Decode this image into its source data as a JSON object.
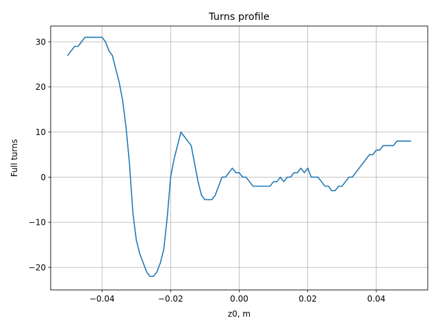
{
  "chart_data": {
    "type": "line",
    "title": "Turns profile",
    "xlabel": "z0, m",
    "ylabel": "Full turns",
    "xlim": [
      -0.055,
      0.055
    ],
    "ylim": [
      -25,
      33.5
    ],
    "grid": true,
    "x_ticks": [
      -0.04,
      -0.02,
      0.0,
      0.02,
      0.04
    ],
    "x_tick_labels": [
      "−0.04",
      "−0.02",
      "0.00",
      "0.02",
      "0.04"
    ],
    "y_ticks": [
      -20,
      -10,
      0,
      10,
      20,
      30
    ],
    "y_tick_labels": [
      "−20",
      "−10",
      "0",
      "10",
      "20",
      "30"
    ],
    "line_color": "#1f77b4",
    "series": [
      {
        "x": [
          -0.05,
          -0.049,
          -0.048,
          -0.047,
          -0.046,
          -0.045,
          -0.044,
          -0.043,
          -0.042,
          -0.041,
          -0.04,
          -0.039,
          -0.038,
          -0.037,
          -0.036,
          -0.035,
          -0.034,
          -0.033,
          -0.032,
          -0.031,
          -0.03,
          -0.029,
          -0.028,
          -0.027,
          -0.026,
          -0.025,
          -0.024,
          -0.023,
          -0.022,
          -0.021,
          -0.02,
          -0.019,
          -0.018,
          -0.017,
          -0.016,
          -0.015,
          -0.014,
          -0.013,
          -0.012,
          -0.011,
          -0.01,
          -0.009,
          -0.008,
          -0.007,
          -0.006,
          -0.005,
          -0.004,
          -0.003,
          -0.002,
          -0.001,
          0.0,
          0.001,
          0.002,
          0.003,
          0.004,
          0.005,
          0.006,
          0.007,
          0.008,
          0.009,
          0.01,
          0.011,
          0.012,
          0.013,
          0.014,
          0.015,
          0.016,
          0.017,
          0.018,
          0.019,
          0.02,
          0.021,
          0.022,
          0.023,
          0.024,
          0.025,
          0.026,
          0.027,
          0.028,
          0.029,
          0.03,
          0.031,
          0.032,
          0.033,
          0.034,
          0.035,
          0.036,
          0.037,
          0.038,
          0.039,
          0.04,
          0.041,
          0.042,
          0.043,
          0.044,
          0.045,
          0.046,
          0.047,
          0.048,
          0.049,
          0.05
        ],
        "y": [
          27,
          28,
          29,
          29,
          30,
          31,
          31,
          31,
          31,
          31,
          31,
          30,
          28,
          27,
          24,
          21,
          17,
          11,
          3,
          -8,
          -14,
          -17,
          -19,
          -21,
          -22,
          -22,
          -21,
          -19,
          -16,
          -9,
          0,
          4,
          7,
          10,
          9,
          8,
          7,
          3,
          -1,
          -4,
          -5,
          -5,
          -5,
          -4,
          -2,
          0,
          0,
          1,
          2,
          1,
          1,
          0,
          0,
          -1,
          -2,
          -2,
          -2,
          -2,
          -2,
          -2,
          -1,
          -1,
          0,
          -1,
          0,
          0,
          1,
          1,
          2,
          1,
          2,
          0,
          0,
          0,
          -1,
          -2,
          -2,
          -3,
          -3,
          -2,
          -2,
          -1,
          0,
          0,
          1,
          2,
          3,
          4,
          5,
          5,
          6,
          6,
          7,
          7,
          7,
          7,
          8,
          8,
          8,
          8,
          8
        ]
      }
    ]
  }
}
